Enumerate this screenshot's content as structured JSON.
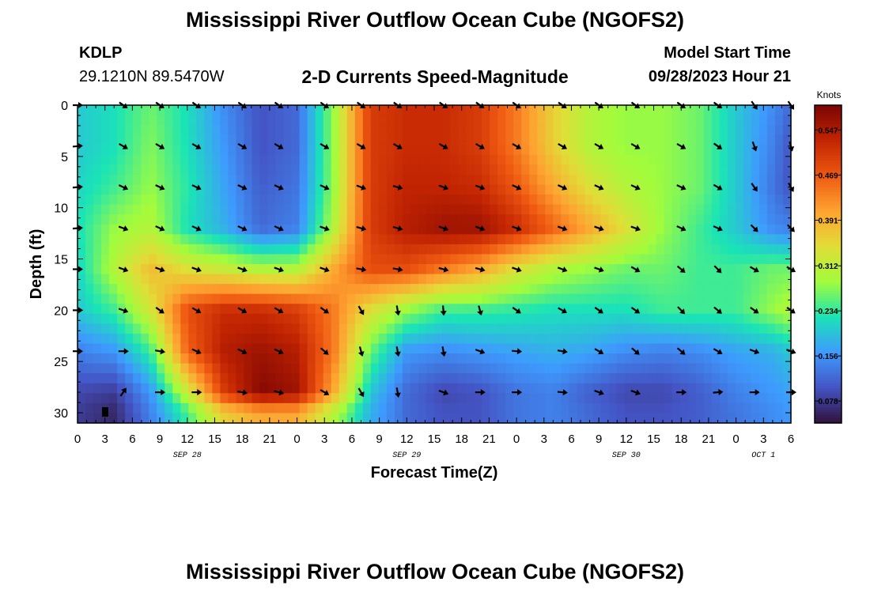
{
  "header": {
    "title": "Mississippi River Outflow Ocean Cube (NGOFS2)",
    "station": "KDLP",
    "coords": "29.1210N  89.5470W",
    "subtitle": "2-D Currents Speed-Magnitude",
    "start_label": "Model Start Time",
    "start_value": "09/28/2023 Hour 21"
  },
  "footer": {
    "title": "Mississippi River Outflow Ocean Cube (NGOFS2)"
  },
  "colors": {
    "arrow": "#000000",
    "colormap": [
      "#30123b",
      "#4454c4",
      "#3e9bfe",
      "#1ae4b6",
      "#a2fc3c",
      "#e1dd37",
      "#fea331",
      "#ef5911",
      "#c22402",
      "#7a0403"
    ]
  },
  "chart_data": {
    "type": "heatmap",
    "title": "2-D Currents Speed-Magnitude",
    "xlabel": "Forecast Time(Z)",
    "ylabel": "Depth (ft)",
    "colorbar_label": "Knots",
    "colorbar_ticks": [
      "0.547",
      "0.469",
      "0.391",
      "0.312",
      "0.234",
      "0.156",
      "0.078"
    ],
    "colorbar_range": [
      0.04,
      0.59
    ],
    "x_range_hours": [
      0,
      78
    ],
    "y_range_ft": [
      0,
      31
    ],
    "x_ticks": [
      "0",
      "3",
      "6",
      "9",
      "12",
      "15",
      "18",
      "21",
      "0",
      "3",
      "6",
      "9",
      "12",
      "15",
      "18",
      "21",
      "0",
      "3",
      "6",
      "9",
      "12",
      "15",
      "18",
      "21",
      "0",
      "3",
      "6"
    ],
    "x_tick_hours": [
      0,
      3,
      6,
      9,
      12,
      15,
      18,
      21,
      24,
      27,
      30,
      33,
      36,
      39,
      42,
      45,
      48,
      51,
      54,
      57,
      60,
      63,
      66,
      69,
      72,
      75,
      78
    ],
    "y_ticks": [
      "0",
      "5",
      "10",
      "15",
      "20",
      "25",
      "30"
    ],
    "y_tick_values": [
      0,
      5,
      10,
      15,
      20,
      25,
      30
    ],
    "date_labels": [
      {
        "text": "SEP 28",
        "hour": 12
      },
      {
        "text": "SEP 29",
        "hour": 36
      },
      {
        "text": "SEP 30",
        "hour": 60
      },
      {
        "text": "OCT 1",
        "hour": 75
      }
    ],
    "depths_ft": [
      0,
      4,
      8,
      12,
      16,
      20,
      24,
      28,
      30
    ],
    "hours": [
      0,
      4,
      8,
      12,
      16,
      20,
      24,
      28,
      32,
      36,
      40,
      44,
      48,
      52,
      56,
      60,
      64,
      68,
      72,
      76,
      78
    ],
    "speed_knots": [
      [
        0.2,
        0.22,
        0.26,
        0.22,
        0.15,
        0.1,
        0.12,
        0.28,
        0.5,
        0.52,
        0.52,
        0.5,
        0.44,
        0.36,
        0.3,
        0.28,
        0.28,
        0.26,
        0.2,
        0.15,
        0.12
      ],
      [
        0.2,
        0.22,
        0.27,
        0.22,
        0.16,
        0.1,
        0.12,
        0.28,
        0.5,
        0.52,
        0.52,
        0.5,
        0.44,
        0.36,
        0.3,
        0.28,
        0.28,
        0.26,
        0.2,
        0.14,
        0.1
      ],
      [
        0.21,
        0.24,
        0.28,
        0.23,
        0.17,
        0.11,
        0.13,
        0.28,
        0.5,
        0.53,
        0.53,
        0.52,
        0.47,
        0.4,
        0.34,
        0.3,
        0.28,
        0.26,
        0.2,
        0.13,
        0.1
      ],
      [
        0.22,
        0.28,
        0.3,
        0.22,
        0.18,
        0.12,
        0.14,
        0.3,
        0.5,
        0.54,
        0.56,
        0.56,
        0.52,
        0.46,
        0.4,
        0.34,
        0.28,
        0.24,
        0.2,
        0.15,
        0.14
      ],
      [
        0.21,
        0.3,
        0.38,
        0.34,
        0.32,
        0.3,
        0.3,
        0.4,
        0.48,
        0.48,
        0.44,
        0.4,
        0.34,
        0.3,
        0.28,
        0.26,
        0.26,
        0.24,
        0.24,
        0.26,
        0.26
      ],
      [
        0.2,
        0.24,
        0.33,
        0.48,
        0.52,
        0.52,
        0.5,
        0.44,
        0.34,
        0.28,
        0.24,
        0.24,
        0.23,
        0.22,
        0.22,
        0.22,
        0.24,
        0.24,
        0.24,
        0.28,
        0.3
      ],
      [
        0.14,
        0.16,
        0.24,
        0.46,
        0.54,
        0.56,
        0.54,
        0.44,
        0.26,
        0.16,
        0.15,
        0.16,
        0.17,
        0.18,
        0.17,
        0.15,
        0.14,
        0.15,
        0.17,
        0.18,
        0.2
      ],
      [
        0.09,
        0.08,
        0.16,
        0.32,
        0.5,
        0.58,
        0.56,
        0.4,
        0.2,
        0.12,
        0.09,
        0.1,
        0.13,
        0.14,
        0.11,
        0.09,
        0.09,
        0.11,
        0.14,
        0.16,
        0.17
      ],
      [
        0.08,
        0.06,
        0.14,
        0.24,
        0.36,
        0.4,
        0.4,
        0.3,
        0.18,
        0.12,
        0.1,
        0.1,
        0.13,
        0.14,
        0.12,
        0.1,
        0.1,
        0.11,
        0.13,
        0.15,
        0.16
      ]
    ],
    "vector_hours": [
      0,
      5,
      9,
      13,
      18,
      22,
      27,
      31,
      35,
      40,
      44,
      48,
      53,
      57,
      61,
      66,
      70,
      74,
      78
    ],
    "vector_depths_ft": [
      0,
      4,
      8,
      12,
      16,
      20,
      24,
      28
    ],
    "vector_angles_deg": [
      [
        0,
        35,
        35,
        35,
        35,
        35,
        35,
        35,
        35,
        35,
        35,
        35,
        35,
        35,
        35,
        35,
        35,
        55,
        55
      ],
      [
        -5,
        30,
        30,
        30,
        30,
        30,
        30,
        30,
        30,
        30,
        30,
        30,
        30,
        30,
        30,
        30,
        35,
        70,
        75
      ],
      [
        -5,
        25,
        25,
        25,
        25,
        25,
        25,
        20,
        15,
        20,
        20,
        25,
        25,
        25,
        25,
        25,
        30,
        55,
        60
      ],
      [
        -5,
        20,
        25,
        25,
        25,
        25,
        20,
        15,
        15,
        20,
        20,
        20,
        20,
        20,
        20,
        25,
        25,
        45,
        45
      ],
      [
        0,
        20,
        20,
        20,
        20,
        20,
        20,
        10,
        10,
        15,
        15,
        20,
        20,
        20,
        30,
        40,
        45,
        30,
        30
      ],
      [
        0,
        20,
        35,
        30,
        30,
        30,
        35,
        60,
        80,
        85,
        75,
        35,
        30,
        35,
        35,
        45,
        40,
        35,
        35
      ],
      [
        0,
        0,
        10,
        25,
        25,
        25,
        40,
        75,
        80,
        80,
        20,
        5,
        10,
        30,
        40,
        40,
        30,
        20,
        20
      ],
      [
        null,
        -55,
        0,
        0,
        10,
        15,
        30,
        60,
        80,
        20,
        0,
        0,
        5,
        20,
        20,
        0,
        -5,
        0,
        0
      ]
    ]
  }
}
